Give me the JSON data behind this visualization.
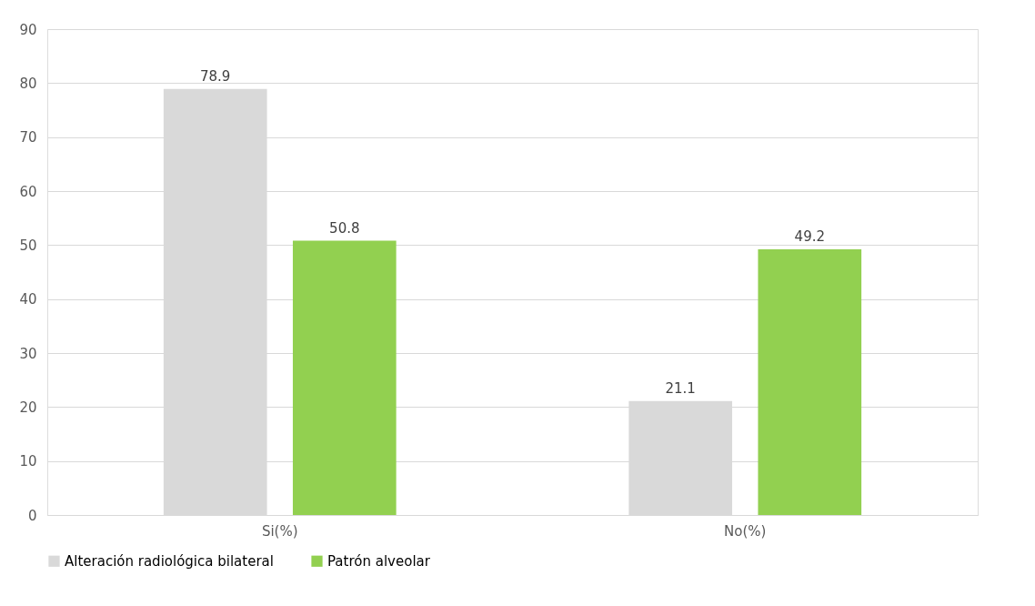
{
  "chart_data": {
    "type": "bar",
    "categories": [
      "Si(%)",
      "No(%)"
    ],
    "series": [
      {
        "name": "Alteración radiológica bilateral",
        "color": "#d9d9d9",
        "values": [
          78.9,
          21.1
        ]
      },
      {
        "name": "Patrón alveolar",
        "color": "#92d050",
        "values": [
          50.8,
          49.2
        ]
      }
    ],
    "ylim": [
      0,
      90
    ],
    "yticks": [
      0,
      10,
      20,
      30,
      40,
      50,
      60,
      70,
      80,
      90
    ],
    "grid": "y",
    "legend": "bottom",
    "data_labels": true
  }
}
